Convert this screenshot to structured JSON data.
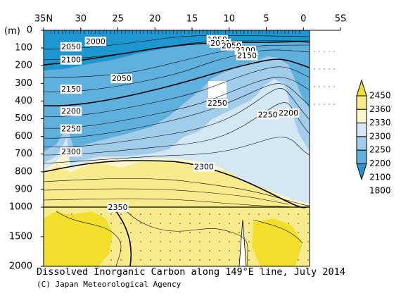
{
  "chart_data": {
    "type": "heatmap",
    "title": "Dissolved Inorganic Carbon along 149°E line, July 2014",
    "credit": "(C) Japan Meteorological Agency",
    "ylabel": "(m)",
    "x_tick_labels": [
      "35N",
      "30",
      "25",
      "20",
      "15",
      "10",
      "5",
      "0",
      "5S"
    ],
    "x_ticks_deg": [
      35,
      30,
      25,
      20,
      15,
      10,
      5,
      0,
      -5
    ],
    "xlim_deg": [
      35,
      -5
    ],
    "y_tick_labels_upper": [
      "0",
      "100",
      "200",
      "300",
      "400",
      "500",
      "600",
      "700",
      "800",
      "900",
      "1000"
    ],
    "y_tick_labels_lower": [
      "1500",
      "2000"
    ],
    "ylim": [
      0,
      2000
    ],
    "y_break_depth": 1000,
    "colorbar": {
      "labels": [
        "2450",
        "2360",
        "2330",
        "2300",
        "2250",
        "2200",
        "2100",
        "1800"
      ],
      "colors": [
        "#f2df2c",
        "#f8eb8e",
        "#fdf6cc",
        "#d3e7f4",
        "#a2cdea",
        "#5fb0dd",
        "#1e96d0"
      ]
    },
    "contour_labels": [
      {
        "text": "1950",
        "lat": 11.6,
        "depth": 55
      },
      {
        "text": "2000",
        "lat": 28.0,
        "depth": 65
      },
      {
        "text": "2000",
        "lat": 11.2,
        "depth": 75
      },
      {
        "text": "2050",
        "lat": 9.7,
        "depth": 90
      },
      {
        "text": "2050",
        "lat": 31.3,
        "depth": 95
      },
      {
        "text": "2100",
        "lat": 7.8,
        "depth": 115
      },
      {
        "text": "2150",
        "lat": 7.6,
        "depth": 145
      },
      {
        "text": "2100",
        "lat": 31.3,
        "depth": 170
      },
      {
        "text": "2050",
        "lat": 24.5,
        "depth": 275
      },
      {
        "text": "2150",
        "lat": 31.3,
        "depth": 335
      },
      {
        "text": "2250",
        "lat": 11.6,
        "depth": 415
      },
      {
        "text": "2200",
        "lat": 31.3,
        "depth": 460
      },
      {
        "text": "2250",
        "lat": 4.8,
        "depth": 480
      },
      {
        "text": "2200",
        "lat": 2.0,
        "depth": 470
      },
      {
        "text": "2250",
        "lat": 31.3,
        "depth": 560
      },
      {
        "text": "2300",
        "lat": 31.3,
        "depth": 690
      },
      {
        "text": "2300",
        "lat": 13.4,
        "depth": 775
      },
      {
        "text": "2350",
        "lat": 25.0,
        "depth": 1010
      }
    ]
  }
}
